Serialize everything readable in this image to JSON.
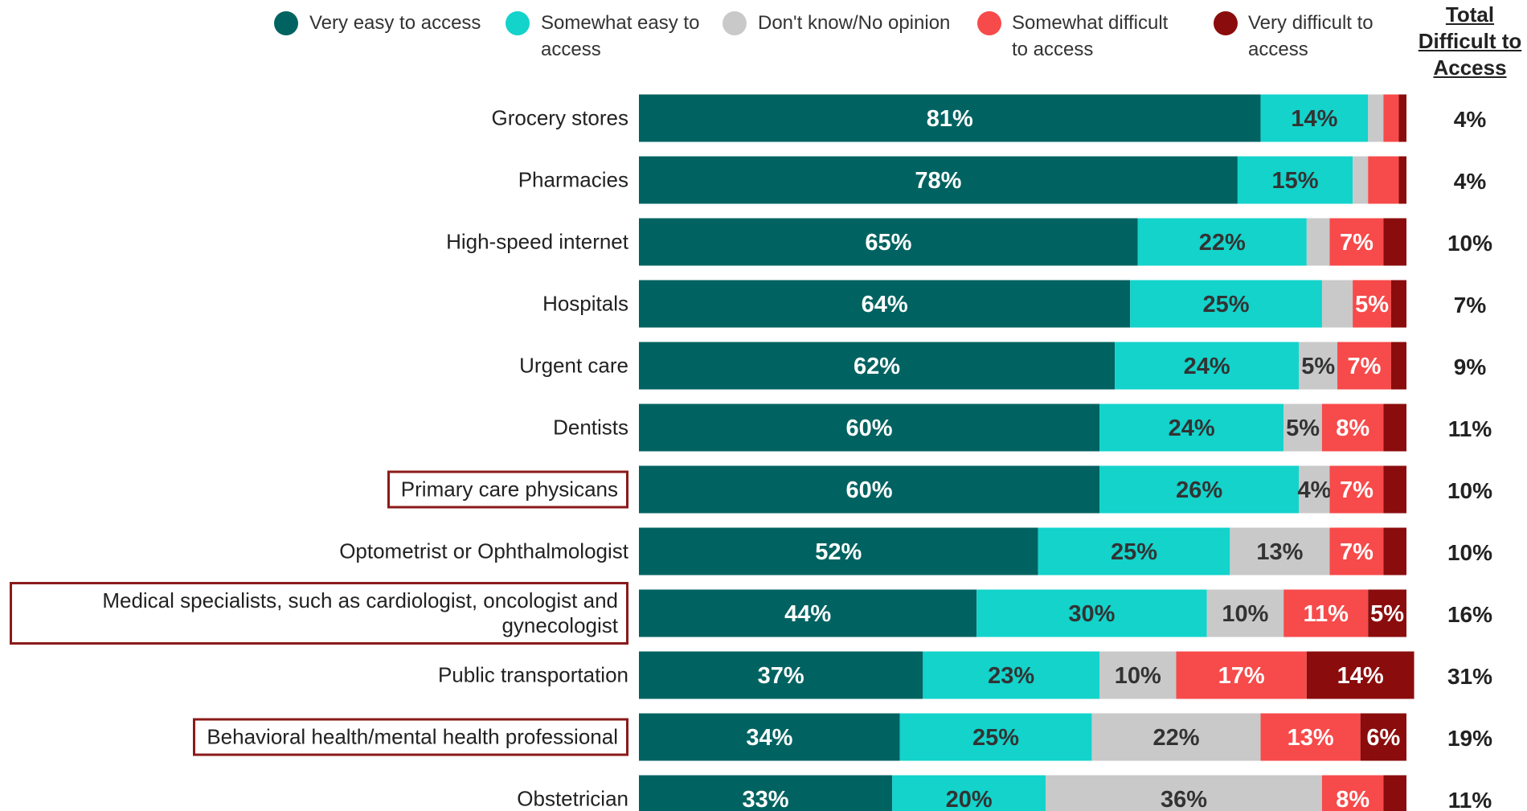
{
  "chart_data": {
    "type": "stacked_bar_horizontal",
    "categories": [
      "Grocery stores",
      "Pharmacies",
      "High-speed internet",
      "Hospitals",
      "Urgent care",
      "Dentists",
      "Primary care physicans",
      "Optometrist or Ophthalmologist",
      "Medical specialists, such as cardiologist, oncologist and gynecologist",
      "Public transportation",
      "Behavioral health/mental health professional",
      "Obstetrician"
    ],
    "series": [
      {
        "name": "Very easy to access",
        "color": "#006361",
        "label_color": "#ffffff",
        "values": [
          81,
          78,
          65,
          64,
          62,
          60,
          60,
          52,
          44,
          37,
          34,
          33
        ],
        "value_labels": [
          "81%",
          "78%",
          "65%",
          "64%",
          "62%",
          "60%",
          "60%",
          "52%",
          "44%",
          "37%",
          "34%",
          "33%"
        ]
      },
      {
        "name": "Somewhat easy to access",
        "color": "#13d3cb",
        "label_color": "#333333",
        "values": [
          14,
          15,
          22,
          25,
          24,
          24,
          26,
          25,
          30,
          23,
          25,
          20
        ],
        "value_labels": [
          "14%",
          "15%",
          "22%",
          "25%",
          "24%",
          "24%",
          "26%",
          "25%",
          "30%",
          "23%",
          "25%",
          "20%"
        ]
      },
      {
        "name": "Don't know/No opinion",
        "color": "#c9c9c9",
        "label_color": "#333333",
        "values": [
          2,
          2,
          3,
          4,
          5,
          5,
          4,
          13,
          10,
          10,
          22,
          36
        ],
        "value_labels": [
          null,
          null,
          null,
          null,
          "5%",
          "5%",
          "4%",
          "13%",
          "10%",
          "10%",
          "22%",
          "36%"
        ]
      },
      {
        "name": "Somewhat difficult to access",
        "color": "#f74a4a",
        "label_color": "#ffffff",
        "values": [
          2,
          4,
          7,
          5,
          7,
          8,
          7,
          7,
          11,
          17,
          13,
          8
        ],
        "value_labels": [
          null,
          null,
          "7%",
          "5%",
          "7%",
          "8%",
          "7%",
          "7%",
          "11%",
          "17%",
          "13%",
          "8%"
        ]
      },
      {
        "name": "Very difficult to access",
        "color": "#8b0c0c",
        "label_color": "#ffffff",
        "values": [
          1,
          1,
          3,
          2,
          2,
          3,
          3,
          3,
          5,
          14,
          6,
          3
        ],
        "value_labels": [
          null,
          null,
          null,
          null,
          null,
          null,
          null,
          null,
          "5%",
          "14%",
          "6%",
          null
        ]
      }
    ],
    "totals": {
      "header": [
        "Total",
        "Difficult to",
        "Access"
      ],
      "values": [
        4,
        4,
        10,
        7,
        9,
        11,
        10,
        10,
        16,
        31,
        19,
        11
      ],
      "value_labels": [
        "4%",
        "4%",
        "10%",
        "7%",
        "9%",
        "11%",
        "10%",
        "10%",
        "16%",
        "31%",
        "19%",
        "11%"
      ]
    },
    "highlighted": [
      6,
      8,
      10
    ],
    "highlight_color": "#8b1a1a"
  }
}
